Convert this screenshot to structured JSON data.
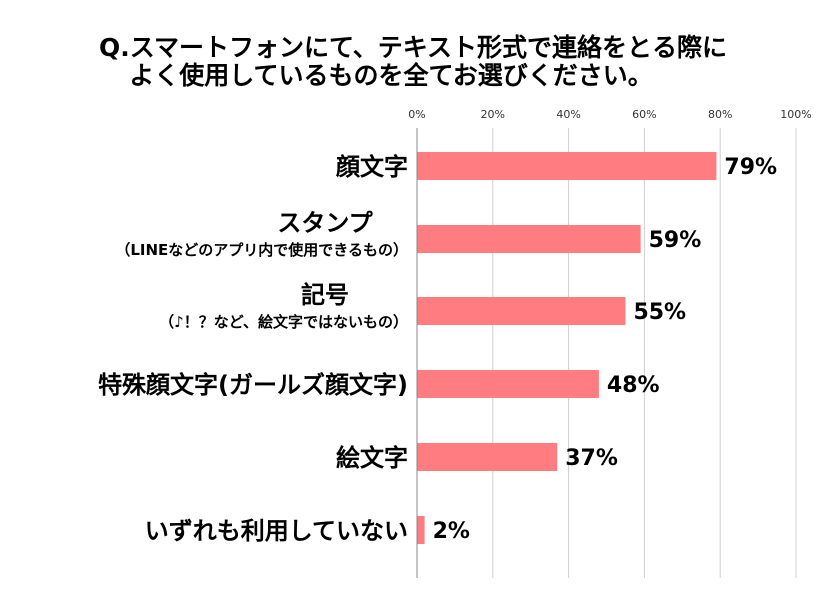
{
  "title_line1": "Q.スマートフォンにて、テキスト形式で連絡をとる際に",
  "title_line2": "よく使用しているものを全てお選びください。",
  "chart_data": {
    "type": "bar",
    "orientation": "horizontal",
    "xlim": [
      0,
      100
    ],
    "ticks": [
      "0%",
      "20%",
      "40%",
      "60%",
      "80%",
      "100%"
    ],
    "grid": true,
    "bar_color": "#ff7c80",
    "categories": [
      {
        "main": "顔文字",
        "sub": ""
      },
      {
        "main": "スタンプ",
        "sub": "（LINEなどのアプリ内で使用できるもの）"
      },
      {
        "main": "記号",
        "sub": "（♪！？など、絵文字ではないもの）"
      },
      {
        "main": "特殊顔文字(ガールズ顔文字)",
        "sub": ""
      },
      {
        "main": "絵文字",
        "sub": ""
      },
      {
        "main": "いずれも利用していない",
        "sub": ""
      }
    ],
    "values": [
      79,
      59,
      55,
      48,
      37,
      2
    ],
    "value_labels": [
      "79%",
      "59%",
      "55%",
      "48%",
      "37%",
      "2%"
    ]
  }
}
